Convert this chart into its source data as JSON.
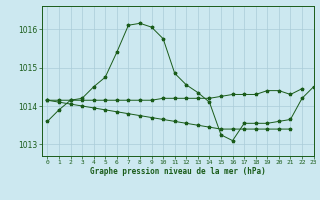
{
  "title": "Graphe pression niveau de la mer (hPa)",
  "bg_color": "#cce8f0",
  "grid_color": "#aaccd8",
  "line_color": "#1a5c1a",
  "xlim": [
    -0.5,
    23
  ],
  "ylim": [
    1012.7,
    1016.6
  ],
  "yticks": [
    1013,
    1014,
    1015,
    1016
  ],
  "xtick_labels": [
    "0",
    "1",
    "2",
    "3",
    "4",
    "5",
    "6",
    "7",
    "8",
    "9",
    "10",
    "11",
    "12",
    "13",
    "14",
    "15",
    "16",
    "17",
    "18",
    "19",
    "20",
    "21",
    "22",
    "23"
  ],
  "series": [
    [
      1013.6,
      1013.9,
      1014.15,
      1014.2,
      1014.5,
      1014.75,
      1015.4,
      1016.1,
      1016.15,
      1016.05,
      1015.75,
      1014.85,
      1014.55,
      1014.35,
      1014.1,
      1013.25,
      1013.1,
      1013.55,
      1013.55,
      1013.55,
      1013.6,
      1013.65,
      1014.2,
      1014.5
    ],
    [
      1014.15,
      1014.15,
      1014.15,
      1014.15,
      1014.15,
      1014.15,
      1014.15,
      1014.15,
      1014.15,
      1014.15,
      1014.2,
      1014.2,
      1014.2,
      1014.2,
      1014.2,
      1014.25,
      1014.3,
      1014.3,
      1014.3,
      1014.4,
      1014.4,
      1014.3,
      1014.45,
      null
    ],
    [
      1014.15,
      1014.1,
      1014.05,
      1014.0,
      1013.95,
      1013.9,
      1013.85,
      1013.8,
      1013.75,
      1013.7,
      1013.65,
      1013.6,
      1013.55,
      1013.5,
      1013.45,
      1013.4,
      1013.4,
      1013.4,
      1013.4,
      1013.4,
      1013.4,
      1013.4,
      null,
      null
    ]
  ]
}
